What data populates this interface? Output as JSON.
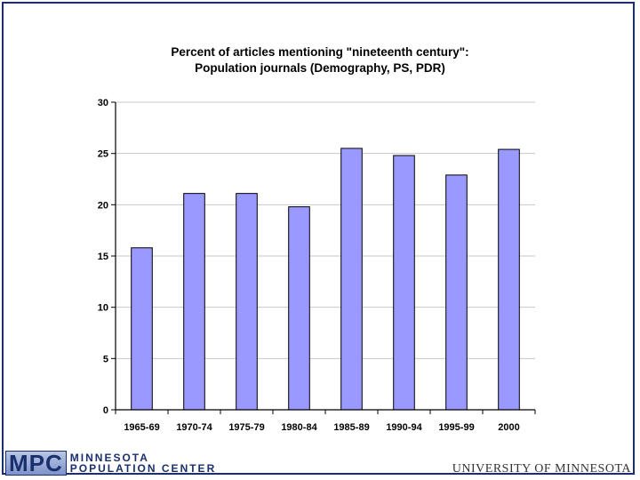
{
  "chart_data": {
    "type": "bar",
    "title": "Percent of articles mentioning \"nineteenth century\":",
    "subtitle": "Population journals (Demography, PS, PDR)",
    "categories": [
      "1965-69",
      "1970-74",
      "1975-79",
      "1980-84",
      "1985-89",
      "1990-94",
      "1995-99",
      "2000"
    ],
    "values": [
      15.8,
      21.1,
      21.1,
      19.8,
      25.5,
      24.8,
      22.9,
      25.4
    ],
    "ylim": [
      0,
      30
    ],
    "yticks": [
      "0",
      "5",
      "10",
      "15",
      "20",
      "25",
      "30"
    ],
    "grid": true,
    "bar_color": "#9999ff"
  },
  "footer": {
    "logo_letters": "MPC",
    "logo_line1": "MINNESOTA",
    "logo_line2": "POPULATION CENTER",
    "university": "UNIVERSITY OF MINNESOTA"
  }
}
